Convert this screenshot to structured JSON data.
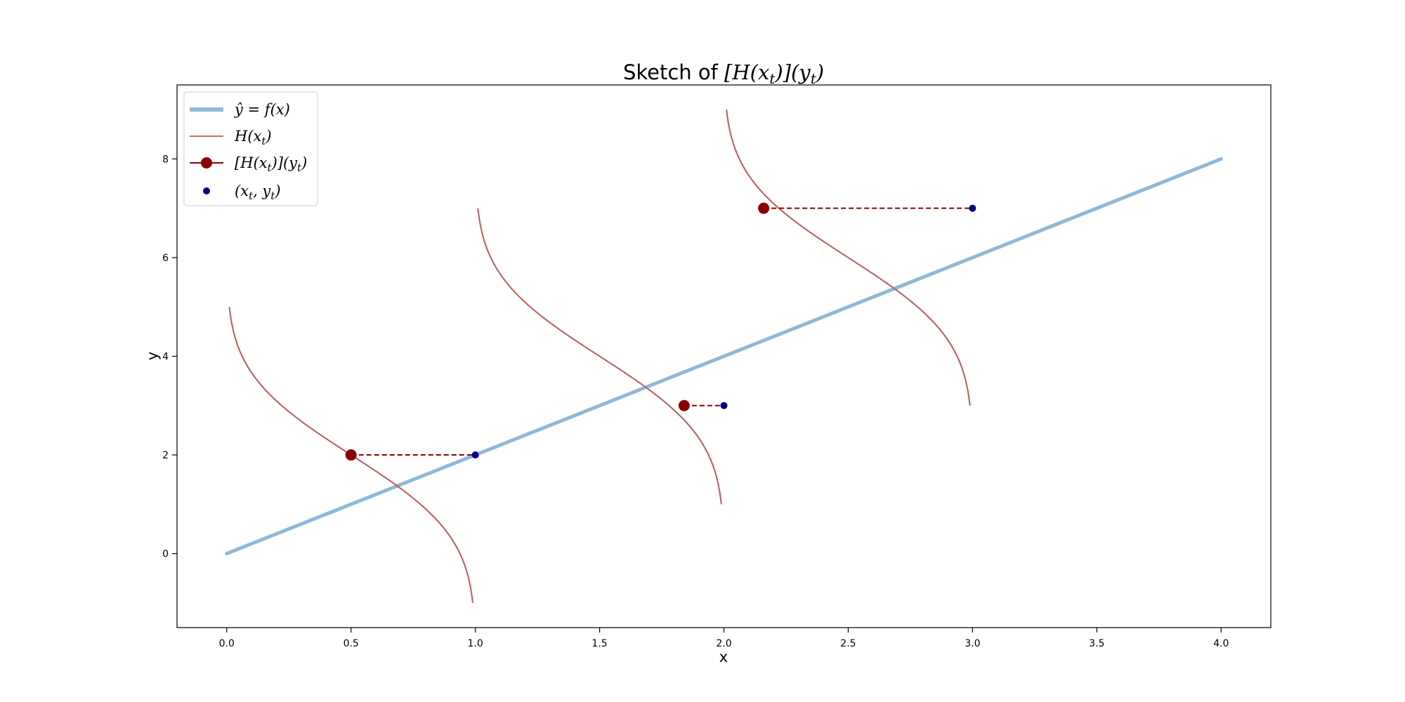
{
  "chart_data": {
    "type": "line",
    "title": "Sketch of [H(x_t)](y_t)",
    "title_parts": {
      "prefix": "Sketch of ",
      "math": "[H(x",
      "sub1": "t",
      "mid": ")](y",
      "sub2": "t",
      "end": ")"
    },
    "xlabel": "x",
    "ylabel": "y",
    "xlim": [
      -0.2,
      4.2
    ],
    "ylim": [
      -1.5,
      9.5
    ],
    "x_ticks": [
      0.0,
      0.5,
      1.0,
      1.5,
      2.0,
      2.5,
      3.0,
      3.5,
      4.0
    ],
    "x_tick_labels": [
      "0.0",
      "0.5",
      "1.0",
      "1.5",
      "2.0",
      "2.5",
      "3.0",
      "3.5",
      "4.0"
    ],
    "y_ticks": [
      0,
      2,
      4,
      6,
      8
    ],
    "y_tick_labels": [
      "0",
      "2",
      "4",
      "6",
      "8"
    ],
    "grid": false,
    "legend_placement": "upper-left",
    "legend": [
      {
        "key": "prediction",
        "label_main": "ŷ = f(x)"
      },
      {
        "key": "density",
        "label_main": "H(x",
        "label_sub": "t",
        "label_end": ")"
      },
      {
        "key": "evaluated",
        "label_main": "[H(x",
        "label_sub": "t",
        "label_mid": ")](y",
        "label_sub2": "t",
        "label_end": ")"
      },
      {
        "key": "observed",
        "label_main": "(x",
        "label_sub": "t",
        "label_mid": ", y",
        "label_sub2": "t",
        "label_end": ")"
      }
    ],
    "colors": {
      "prediction": "#8fb8d8",
      "density": "#c0595a",
      "evaluated": "#8b0000",
      "observed": "#00008b",
      "dashed": "#8b0000"
    },
    "prediction_line": {
      "x": [
        0,
        4
      ],
      "y": [
        0,
        8
      ]
    },
    "observations": [
      {
        "x": 1.0,
        "y": 2.0,
        "eval_x": 0.5
      },
      {
        "x": 2.0,
        "y": 3.0,
        "eval_x": 1.84
      },
      {
        "x": 3.0,
        "y": 7.0,
        "eval_x": 2.16
      }
    ],
    "densities": [
      {
        "base_x": 1.0,
        "mean_y": 2.0,
        "scale": 1.0,
        "y_range": [
          -1,
          5
        ]
      },
      {
        "base_x": 2.0,
        "mean_y": 4.0,
        "scale": 1.0,
        "y_range": [
          1,
          7
        ]
      },
      {
        "base_x": 3.0,
        "mean_y": 6.0,
        "scale": 1.0,
        "y_range": [
          3,
          9
        ]
      }
    ]
  }
}
